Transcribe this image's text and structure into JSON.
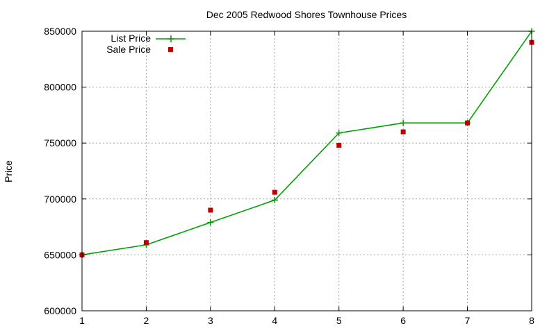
{
  "chart_data": {
    "type": "line",
    "title": "Dec 2005 Redwood Shores Townhouse Prices",
    "xlabel": "",
    "ylabel": "Price",
    "x": [
      1,
      2,
      3,
      4,
      5,
      6,
      7,
      8
    ],
    "xlim": [
      1,
      8
    ],
    "ylim": [
      600000,
      850000
    ],
    "xticks": [
      "1",
      "2",
      "3",
      "4",
      "5",
      "6",
      "7",
      "8"
    ],
    "yticks": [
      "600000",
      "650000",
      "700000",
      "750000",
      "800000",
      "850000"
    ],
    "ytick_values": [
      600000,
      650000,
      700000,
      750000,
      800000,
      850000
    ],
    "grid": true,
    "legend_position": "top-left",
    "series": [
      {
        "name": "List Price",
        "style": "lines+points",
        "marker": "plus",
        "color": "#00a000",
        "values": [
          650000,
          659000,
          679000,
          699000,
          759000,
          768000,
          768000,
          850000
        ]
      },
      {
        "name": "Sale Price",
        "style": "points",
        "marker": "square",
        "color": "#c00000",
        "values": [
          650000,
          661000,
          690000,
          706000,
          748000,
          760000,
          768000,
          840000
        ]
      }
    ]
  }
}
